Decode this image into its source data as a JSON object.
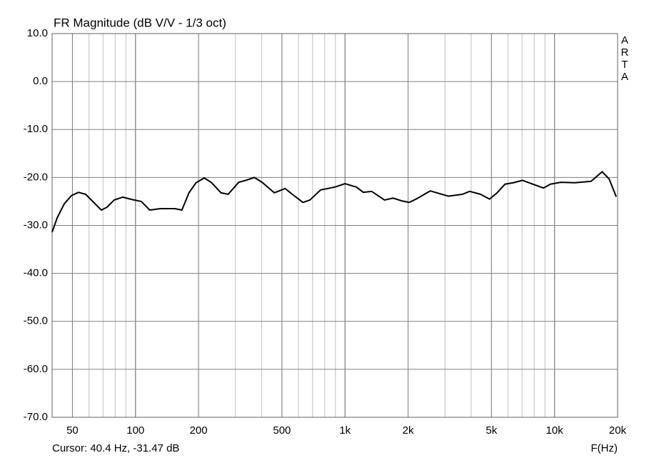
{
  "chart_data": {
    "type": "line",
    "title": "FR Magnitude (dB V/V - 1/3 oct)",
    "watermark": "ARTA",
    "cursor_text": "Cursor: 40.4 Hz, -31.47 dB",
    "x_label": "F(Hz)",
    "x_scale": "log",
    "grid": true,
    "xlim": [
      40,
      20000
    ],
    "ylim": [
      -70,
      10
    ],
    "xticks": [
      50,
      100,
      200,
      500,
      {
        "value": 1000,
        "label": "1k"
      },
      {
        "value": 2000,
        "label": "2k"
      },
      {
        "value": 5000,
        "label": "5k"
      },
      {
        "value": 10000,
        "label": "10k"
      },
      {
        "value": 20000,
        "label": "20k"
      }
    ],
    "yticks": [
      {
        "value": 10,
        "label": "10.0"
      },
      {
        "value": 0,
        "label": "0.0"
      },
      {
        "value": -10,
        "label": "-10.0"
      },
      {
        "value": -20,
        "label": "-20.0"
      },
      {
        "value": -30,
        "label": "-30.0"
      },
      {
        "value": -40,
        "label": "-40.0"
      },
      {
        "value": -50,
        "label": "-50.0"
      },
      {
        "value": -60,
        "label": "-60.0"
      },
      {
        "value": -70,
        "label": "-70.0"
      }
    ],
    "x": [
      40,
      42.3,
      45.7,
      49.4,
      53.4,
      57.8,
      62.5,
      68.7,
      73.1,
      79.1,
      86.8,
      96.2,
      106.5,
      117,
      131.5,
      154,
      166.5,
      180,
      194.5,
      213,
      231,
      256,
      277,
      311,
      336,
      369,
      402,
      460,
      518,
      560,
      630,
      680,
      765,
      895,
      1000,
      1133,
      1223,
      1340,
      1544,
      1695,
      1875,
      2025,
      2185,
      2555,
      3115,
      3640,
      3935,
      4430,
      4895,
      5290,
      5800,
      6360,
      7030,
      7890,
      8860,
      9560,
      10720,
      12500,
      14940,
      16880,
      18220,
      19700
    ],
    "series": [
      {
        "color": "#000000",
        "values": [
          -31.4,
          -28.4,
          -25.5,
          -23.8,
          -23.1,
          -23.5,
          -25.0,
          -26.8,
          -26.2,
          -24.7,
          -24.1,
          -24.6,
          -25.0,
          -26.8,
          -26.5,
          -26.5,
          -26.8,
          -23.2,
          -21.1,
          -20.1,
          -21.1,
          -23.2,
          -23.5,
          -21.0,
          -20.6,
          -20.0,
          -21.0,
          -23.2,
          -22.3,
          -23.5,
          -25.2,
          -24.7,
          -22.6,
          -22.0,
          -21.3,
          -22.0,
          -23.1,
          -22.9,
          -24.7,
          -24.3,
          -24.9,
          -25.2,
          -24.5,
          -22.8,
          -23.9,
          -23.5,
          -22.9,
          -23.5,
          -24.5,
          -23.3,
          -21.4,
          -21.1,
          -20.6,
          -21.4,
          -22.2,
          -21.4,
          -21.0,
          -21.1,
          -20.8,
          -18.8,
          -20.3,
          -24.0
        ]
      }
    ]
  }
}
